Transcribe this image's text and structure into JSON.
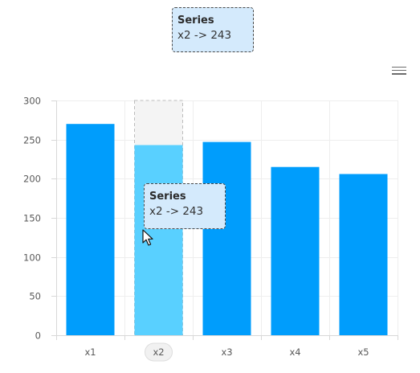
{
  "toolbar": {
    "menu_icon": "hamburger-menu-icon"
  },
  "tooltip": {
    "title": "Series",
    "value": "x2 -> 243"
  },
  "hovered_category": "x2",
  "colors": {
    "bar": "#009dfc",
    "bar_hover": "#59d0ff",
    "hover_band": "#f4f4f4",
    "grid": "#eeeeee",
    "axis": "#d8d8d8",
    "tick_text": "#5a5a5a",
    "tooltip_bg": "#d4eafc"
  },
  "chart_data": {
    "type": "bar",
    "categories": [
      "x1",
      "x2",
      "x3",
      "x4",
      "x5"
    ],
    "series": [
      {
        "values": [
          270,
          243,
          247,
          215,
          206
        ]
      }
    ],
    "yticks": [
      0,
      50,
      100,
      150,
      200,
      250,
      300
    ],
    "ylim": [
      0,
      300
    ],
    "grid": true
  }
}
